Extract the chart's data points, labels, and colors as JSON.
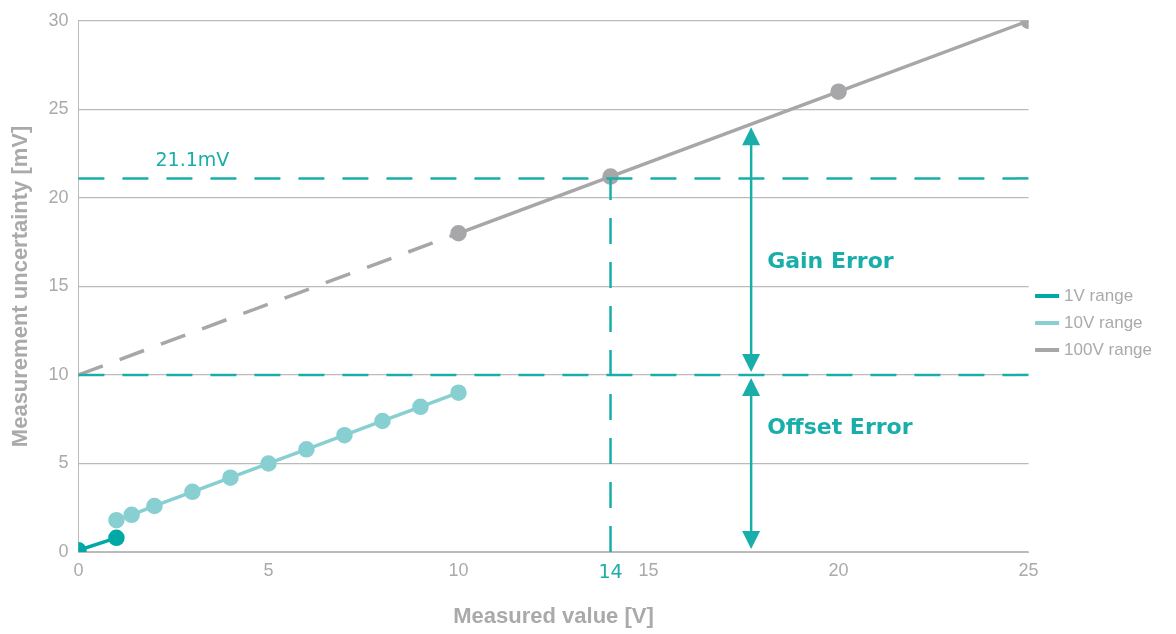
{
  "chart_data": {
    "type": "line",
    "xlabel": "Measured value [V]",
    "ylabel": "Measurement uncertainty [mV]",
    "xlim": [
      0,
      25
    ],
    "xticks": [
      0,
      5,
      10,
      15,
      20,
      25
    ],
    "ylim": [
      0,
      30
    ],
    "yticks": [
      0,
      5,
      10,
      15,
      20,
      25,
      30
    ],
    "grid": "y",
    "legend": "right",
    "marker": "circle",
    "line_style": "solid",
    "series": [
      {
        "name": "1V range",
        "color": "#00a9a5",
        "x": [
          0,
          1
        ],
        "values": [
          0.1,
          0.8
        ]
      },
      {
        "name": "10V range",
        "color": "#88cfd1",
        "x": [
          1,
          1.4,
          2,
          3,
          4,
          5,
          6,
          7,
          8,
          9,
          10
        ],
        "values": [
          1.8,
          2.1,
          2.6,
          3.4,
          4.2,
          5.0,
          5.8,
          6.6,
          7.4,
          8.2,
          9.0
        ]
      },
      {
        "name": "100V range",
        "color": "#a7a7aa",
        "x": [
          10,
          14,
          20,
          25
        ],
        "values": [
          18,
          21.2,
          26,
          30
        ]
      },
      {
        "color": "#a7a7aa",
        "x": [
          0,
          10
        ],
        "values": [
          10,
          18
        ],
        "line_style": "dashed",
        "marker": "none"
      }
    ],
    "ref_lines": [
      {
        "axis": "y",
        "value": 10,
        "color": "#1aaeaa",
        "line_style": "dashed"
      },
      {
        "axis": "y",
        "value": 21.1,
        "label": "21.1mV",
        "color": "#1aaeaa",
        "line_style": "dashed"
      },
      {
        "axis": "x",
        "value": 14,
        "label": "14",
        "color": "#1aaeaa",
        "line_style": "dashed"
      }
    ],
    "annotations": [
      "Gain Error",
      "Offset Error"
    ]
  }
}
